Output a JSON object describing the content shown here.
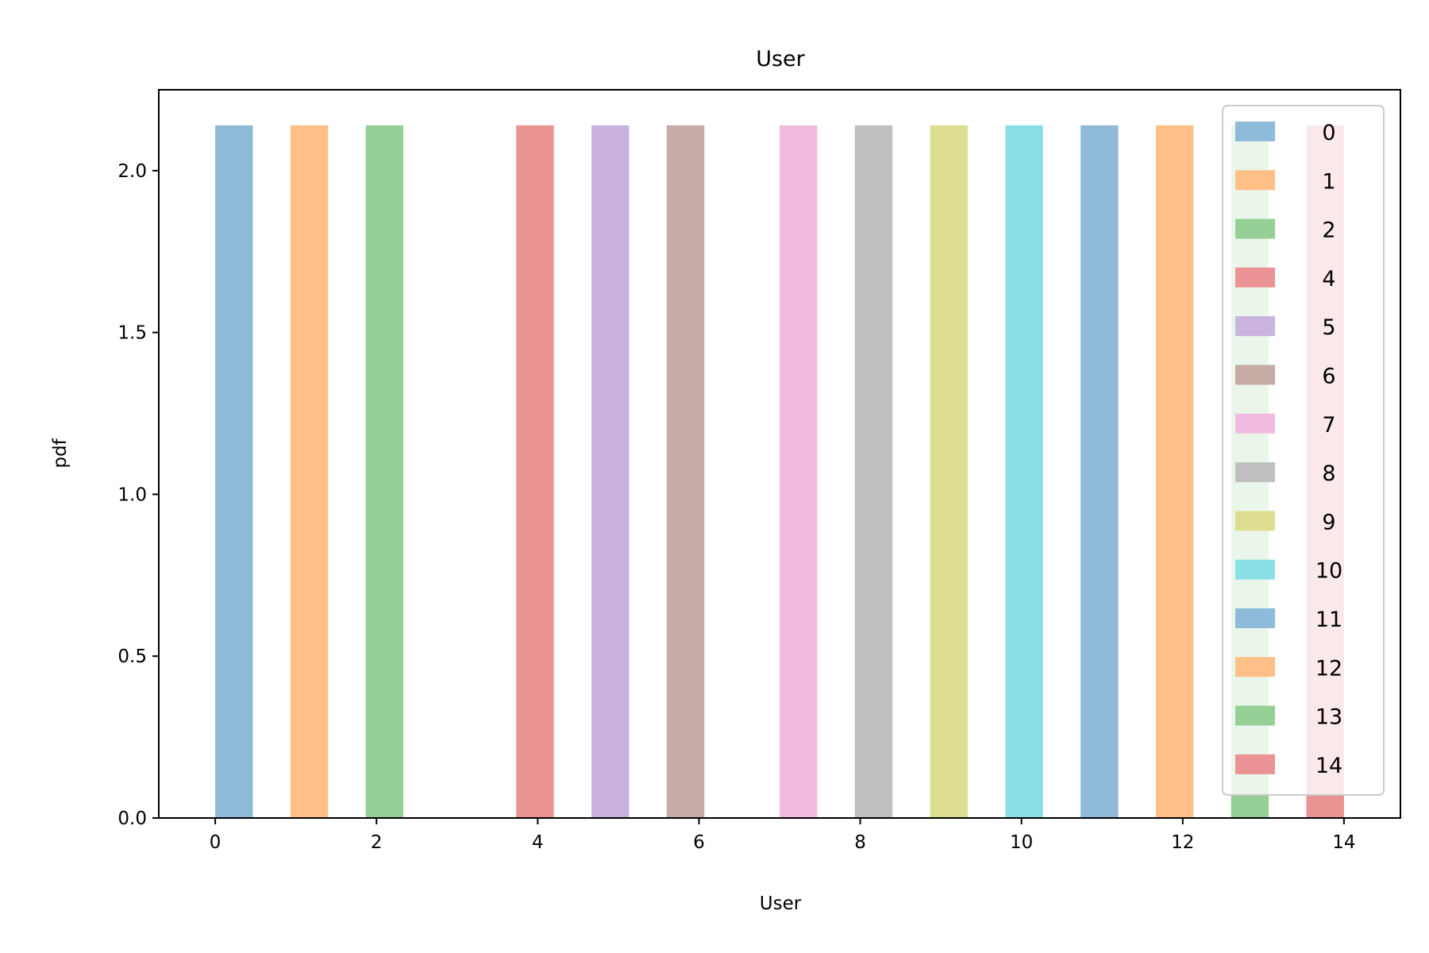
{
  "chart_data": {
    "type": "bar",
    "title": "User",
    "xlabel": "User",
    "ylabel": "pdf",
    "xlim": [
      -0.7,
      14.7
    ],
    "ylim": [
      0,
      2.25
    ],
    "xticks": [
      0,
      2,
      4,
      6,
      8,
      10,
      12,
      14
    ],
    "xtick_labels": [
      "0",
      "2",
      "4",
      "6",
      "8",
      "10",
      "12",
      "14"
    ],
    "yticks": [
      0,
      0.5,
      1.0,
      1.5,
      2.0
    ],
    "ytick_labels": [
      "0.0",
      "0.5",
      "1.0",
      "1.5",
      "2.0"
    ],
    "grid": false,
    "legend_position": "top-right",
    "bar_alpha": 0.5,
    "series": [
      {
        "name": "0",
        "x_start": 0.0,
        "x_end": 0.467,
        "value": 2.14,
        "color": "#1f77b4"
      },
      {
        "name": "1",
        "x_start": 0.933,
        "x_end": 1.4,
        "value": 2.14,
        "color": "#ff7f0e"
      },
      {
        "name": "2",
        "x_start": 1.867,
        "x_end": 2.333,
        "value": 2.14,
        "color": "#2ca02c"
      },
      {
        "name": "4",
        "x_start": 3.733,
        "x_end": 4.2,
        "value": 2.14,
        "color": "#d62728"
      },
      {
        "name": "5",
        "x_start": 4.667,
        "x_end": 5.133,
        "value": 2.14,
        "color": "#9467bd"
      },
      {
        "name": "6",
        "x_start": 5.6,
        "x_end": 6.067,
        "value": 2.14,
        "color": "#8c564b"
      },
      {
        "name": "7",
        "x_start": 7.0,
        "x_end": 7.467,
        "value": 2.14,
        "color": "#e377c2"
      },
      {
        "name": "8",
        "x_start": 7.933,
        "x_end": 8.4,
        "value": 2.14,
        "color": "#7f7f7f"
      },
      {
        "name": "9",
        "x_start": 8.867,
        "x_end": 9.333,
        "value": 2.14,
        "color": "#bcbd22"
      },
      {
        "name": "10",
        "x_start": 9.8,
        "x_end": 10.267,
        "value": 2.14,
        "color": "#17becf"
      },
      {
        "name": "11",
        "x_start": 10.733,
        "x_end": 11.2,
        "value": 2.14,
        "color": "#1f77b4"
      },
      {
        "name": "12",
        "x_start": 11.667,
        "x_end": 12.133,
        "value": 2.14,
        "color": "#ff7f0e"
      },
      {
        "name": "13",
        "x_start": 12.6,
        "x_end": 13.067,
        "value": 2.14,
        "color": "#2ca02c"
      },
      {
        "name": "14",
        "x_start": 13.533,
        "x_end": 14.0,
        "value": 2.14,
        "color": "#d62728"
      }
    ]
  }
}
